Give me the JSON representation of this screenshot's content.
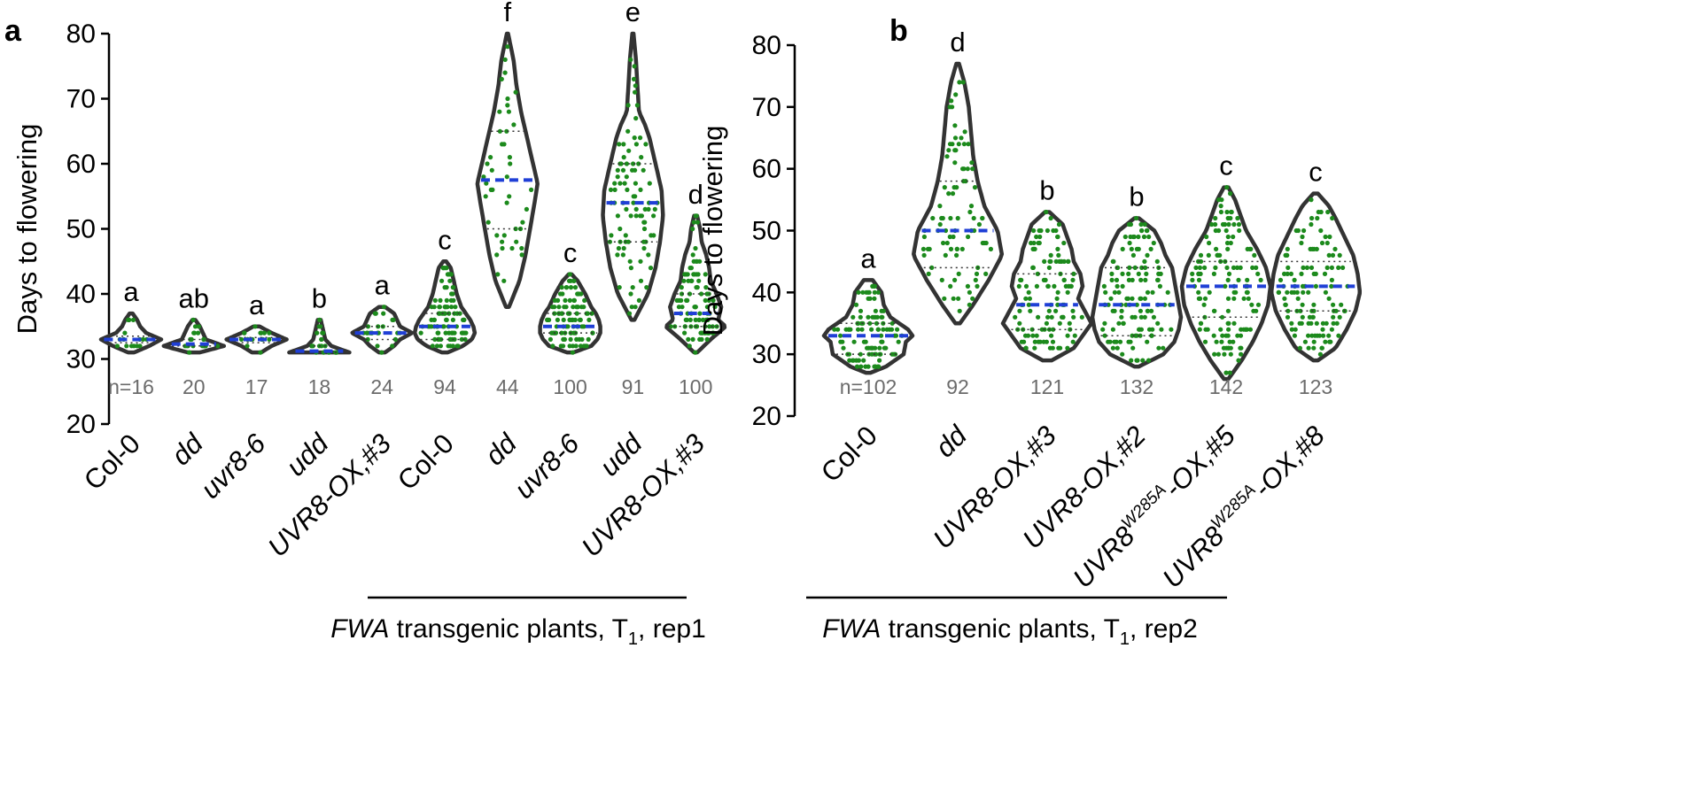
{
  "colors": {
    "violin_outline": "#333333",
    "dot": "#1c8a1c",
    "median": "#1f3fd6",
    "quartile": "#333333",
    "n_text": "#6b6b6b"
  },
  "chart_data": [
    {
      "panel": "a",
      "type": "violin",
      "ylabel": "Days to flowering",
      "ylim": [
        20,
        80
      ],
      "yticks": [
        20,
        30,
        40,
        50,
        60,
        70,
        80
      ],
      "group_label": {
        "italic": "FWA",
        "text": " transgenic plants, T",
        "sub": "1",
        "suffix": ", rep1"
      },
      "categories": [
        {
          "label": "Col-0",
          "italic": false,
          "sup": "",
          "rest": "",
          "n": "n=16",
          "letter": "a",
          "min": 31,
          "max": 37,
          "q1": 32.5,
          "median": 33,
          "q3": 33.5,
          "shape": [
            [
              31,
              0.1
            ],
            [
              32,
              0.6
            ],
            [
              33,
              1.0
            ],
            [
              34,
              0.5
            ],
            [
              35,
              0.3
            ],
            [
              36,
              0.2
            ],
            [
              37,
              0.05
            ]
          ]
        },
        {
          "label": "dd",
          "italic": true,
          "sup": "",
          "rest": "",
          "n": "20",
          "letter": "ab",
          "min": 31,
          "max": 36,
          "q1": 32,
          "median": 32.3,
          "q3": 33,
          "shape": [
            [
              31,
              0.2
            ],
            [
              32,
              1.0
            ],
            [
              33,
              0.4
            ],
            [
              34,
              0.3
            ],
            [
              35,
              0.2
            ],
            [
              36,
              0.05
            ]
          ]
        },
        {
          "label": "uvr8-6",
          "italic": true,
          "sup": "",
          "rest": "",
          "n": "17",
          "letter": "a",
          "min": 31,
          "max": 35,
          "q1": 32.5,
          "median": 33,
          "q3": 33.3,
          "shape": [
            [
              31,
              0.15
            ],
            [
              32,
              0.5
            ],
            [
              33,
              1.0
            ],
            [
              34,
              0.5
            ],
            [
              35,
              0.1
            ]
          ]
        },
        {
          "label": "udd",
          "italic": true,
          "sup": "",
          "rest": "",
          "n": "18",
          "letter": "b",
          "min": 31,
          "max": 36,
          "q1": 31,
          "median": 31.2,
          "q3": 32,
          "shape": [
            [
              31,
              1.0
            ],
            [
              32,
              0.4
            ],
            [
              33,
              0.2
            ],
            [
              34,
              0.15
            ],
            [
              35,
              0.1
            ],
            [
              36,
              0.05
            ]
          ]
        },
        {
          "label": "UVR8-OX,#3",
          "italic": true,
          "sup": "",
          "rest": "",
          "n": "24",
          "letter": "a",
          "min": 31,
          "max": 38,
          "q1": 33,
          "median": 34,
          "q3": 35,
          "shape": [
            [
              31,
              0.1
            ],
            [
              32,
              0.4
            ],
            [
              33,
              0.6
            ],
            [
              34,
              1.0
            ],
            [
              35,
              0.6
            ],
            [
              36,
              0.5
            ],
            [
              37,
              0.4
            ],
            [
              38,
              0.1
            ]
          ]
        },
        {
          "label": "Col-0",
          "italic": false,
          "sup": "",
          "rest": "",
          "n": "94",
          "letter": "c",
          "min": 31,
          "max": 45,
          "q1": 33,
          "median": 35,
          "q3": 37,
          "shape": [
            [
              31,
              0.1
            ],
            [
              32,
              0.6
            ],
            [
              33,
              0.9
            ],
            [
              34,
              1.0
            ],
            [
              35,
              0.95
            ],
            [
              36,
              0.85
            ],
            [
              37,
              0.7
            ],
            [
              38,
              0.55
            ],
            [
              40,
              0.4
            ],
            [
              42,
              0.3
            ],
            [
              44,
              0.2
            ],
            [
              45,
              0.05
            ]
          ]
        },
        {
          "label": "dd",
          "italic": true,
          "sup": "",
          "rest": "",
          "n": "44",
          "letter": "f",
          "min": 38,
          "max": 80,
          "q1": 50,
          "median": 57.5,
          "q3": 65,
          "shape": [
            [
              38,
              0.05
            ],
            [
              42,
              0.4
            ],
            [
              46,
              0.6
            ],
            [
              50,
              0.75
            ],
            [
              54,
              0.9
            ],
            [
              57,
              1.0
            ],
            [
              60,
              0.85
            ],
            [
              64,
              0.65
            ],
            [
              68,
              0.45
            ],
            [
              72,
              0.3
            ],
            [
              76,
              0.2
            ],
            [
              80,
              0.02
            ]
          ]
        },
        {
          "label": "uvr8-6",
          "italic": true,
          "sup": "",
          "rest": "",
          "n": "100",
          "letter": "c",
          "min": 31,
          "max": 43,
          "q1": 34,
          "median": 35,
          "q3": 37,
          "shape": [
            [
              31,
              0.1
            ],
            [
              32,
              0.7
            ],
            [
              33,
              0.9
            ],
            [
              34,
              1.0
            ],
            [
              35,
              1.0
            ],
            [
              36,
              0.95
            ],
            [
              37,
              0.85
            ],
            [
              38,
              0.7
            ],
            [
              40,
              0.5
            ],
            [
              42,
              0.25
            ],
            [
              43,
              0.05
            ]
          ]
        },
        {
          "label": "udd",
          "italic": true,
          "sup": "",
          "rest": "",
          "n": "91",
          "letter": "e",
          "min": 36,
          "max": 80,
          "q1": 48,
          "median": 54,
          "q3": 60,
          "shape": [
            [
              36,
              0.05
            ],
            [
              40,
              0.5
            ],
            [
              44,
              0.75
            ],
            [
              48,
              0.9
            ],
            [
              52,
              1.0
            ],
            [
              56,
              0.95
            ],
            [
              60,
              0.75
            ],
            [
              64,
              0.55
            ],
            [
              66,
              0.4
            ],
            [
              68,
              0.2
            ],
            [
              72,
              0.15
            ],
            [
              76,
              0.1
            ],
            [
              80,
              0.02
            ]
          ]
        },
        {
          "label": "UVR8-OX,#3",
          "italic": true,
          "sup": "",
          "rest": "",
          "n": "100",
          "letter": "d",
          "min": 31,
          "max": 52,
          "q1": 35,
          "median": 37,
          "q3": 40,
          "shape": [
            [
              31,
              0.05
            ],
            [
              33,
              0.5
            ],
            [
              35,
              1.0
            ],
            [
              36,
              0.75
            ],
            [
              38,
              0.85
            ],
            [
              40,
              0.7
            ],
            [
              42,
              0.5
            ],
            [
              44,
              0.45
            ],
            [
              46,
              0.35
            ],
            [
              48,
              0.2
            ],
            [
              50,
              0.15
            ],
            [
              52,
              0.05
            ]
          ]
        }
      ]
    },
    {
      "panel": "b",
      "type": "violin",
      "ylabel": "Days to flowering",
      "ylim": [
        20,
        80
      ],
      "yticks": [
        20,
        30,
        40,
        50,
        60,
        70,
        80
      ],
      "group_label": {
        "italic": "FWA",
        "text": " transgenic plants, T",
        "sub": "1",
        "suffix": ", rep2"
      },
      "categories": [
        {
          "label": "Col-0",
          "italic": false,
          "sup": "",
          "rest": "",
          "n": "n=102",
          "letter": "a",
          "min": 27,
          "max": 42,
          "q1": 30,
          "median": 33,
          "q3": 35,
          "shape": [
            [
              27,
              0.05
            ],
            [
              28,
              0.4
            ],
            [
              30,
              0.8
            ],
            [
              32,
              0.85
            ],
            [
              33,
              1.0
            ],
            [
              34,
              0.9
            ],
            [
              36,
              0.5
            ],
            [
              38,
              0.35
            ],
            [
              40,
              0.3
            ],
            [
              42,
              0.1
            ]
          ]
        },
        {
          "label": "dd",
          "italic": true,
          "sup": "",
          "rest": "",
          "n": "92",
          "letter": "d",
          "min": 35,
          "max": 77,
          "q1": 44,
          "median": 50,
          "q3": 58,
          "shape": [
            [
              35,
              0.05
            ],
            [
              38,
              0.35
            ],
            [
              42,
              0.7
            ],
            [
              46,
              1.0
            ],
            [
              50,
              0.9
            ],
            [
              54,
              0.6
            ],
            [
              58,
              0.45
            ],
            [
              62,
              0.35
            ],
            [
              66,
              0.3
            ],
            [
              70,
              0.25
            ],
            [
              74,
              0.15
            ],
            [
              77,
              0.03
            ]
          ]
        },
        {
          "label": "UVR8-OX,#3",
          "italic": true,
          "sup": "",
          "rest": "",
          "n": "121",
          "letter": "b",
          "min": 29,
          "max": 53,
          "q1": 34,
          "median": 38,
          "q3": 43,
          "shape": [
            [
              29,
              0.1
            ],
            [
              31,
              0.6
            ],
            [
              33,
              0.8
            ],
            [
              35,
              1.0
            ],
            [
              37,
              0.85
            ],
            [
              39,
              0.7
            ],
            [
              41,
              0.8
            ],
            [
              43,
              0.75
            ],
            [
              45,
              0.6
            ],
            [
              47,
              0.55
            ],
            [
              49,
              0.45
            ],
            [
              51,
              0.35
            ],
            [
              53,
              0.05
            ]
          ]
        },
        {
          "label": "UVR8-OX,#2",
          "italic": true,
          "sup": "",
          "rest": "",
          "n": "132",
          "letter": "b",
          "min": 28,
          "max": 52,
          "q1": 33,
          "median": 38,
          "q3": 44,
          "shape": [
            [
              28,
              0.05
            ],
            [
              30,
              0.6
            ],
            [
              32,
              0.85
            ],
            [
              34,
              0.95
            ],
            [
              36,
              1.0
            ],
            [
              38,
              0.95
            ],
            [
              40,
              0.9
            ],
            [
              42,
              0.85
            ],
            [
              44,
              0.8
            ],
            [
              46,
              0.65
            ],
            [
              48,
              0.55
            ],
            [
              50,
              0.4
            ],
            [
              52,
              0.05
            ]
          ]
        },
        {
          "label": "UVR8",
          "italic": true,
          "sup": "W285A",
          "rest": "-OX,#5",
          "n": "142",
          "letter": "c",
          "min": 26,
          "max": 57,
          "q1": 36,
          "median": 41,
          "q3": 45,
          "shape": [
            [
              26,
              0.05
            ],
            [
              29,
              0.35
            ],
            [
              32,
              0.6
            ],
            [
              35,
              0.8
            ],
            [
              38,
              0.95
            ],
            [
              41,
              1.0
            ],
            [
              44,
              0.9
            ],
            [
              47,
              0.7
            ],
            [
              50,
              0.45
            ],
            [
              53,
              0.3
            ],
            [
              55,
              0.2
            ],
            [
              57,
              0.05
            ]
          ]
        },
        {
          "label": "UVR8",
          "italic": true,
          "sup": "W285A",
          "rest": "-OX,#8",
          "n": "123",
          "letter": "c",
          "min": 29,
          "max": 56,
          "q1": 37,
          "median": 41,
          "q3": 45,
          "shape": [
            [
              29,
              0.05
            ],
            [
              31,
              0.45
            ],
            [
              34,
              0.7
            ],
            [
              37,
              0.9
            ],
            [
              40,
              1.0
            ],
            [
              43,
              0.95
            ],
            [
              46,
              0.85
            ],
            [
              49,
              0.65
            ],
            [
              52,
              0.45
            ],
            [
              54,
              0.3
            ],
            [
              56,
              0.05
            ]
          ]
        }
      ]
    }
  ]
}
